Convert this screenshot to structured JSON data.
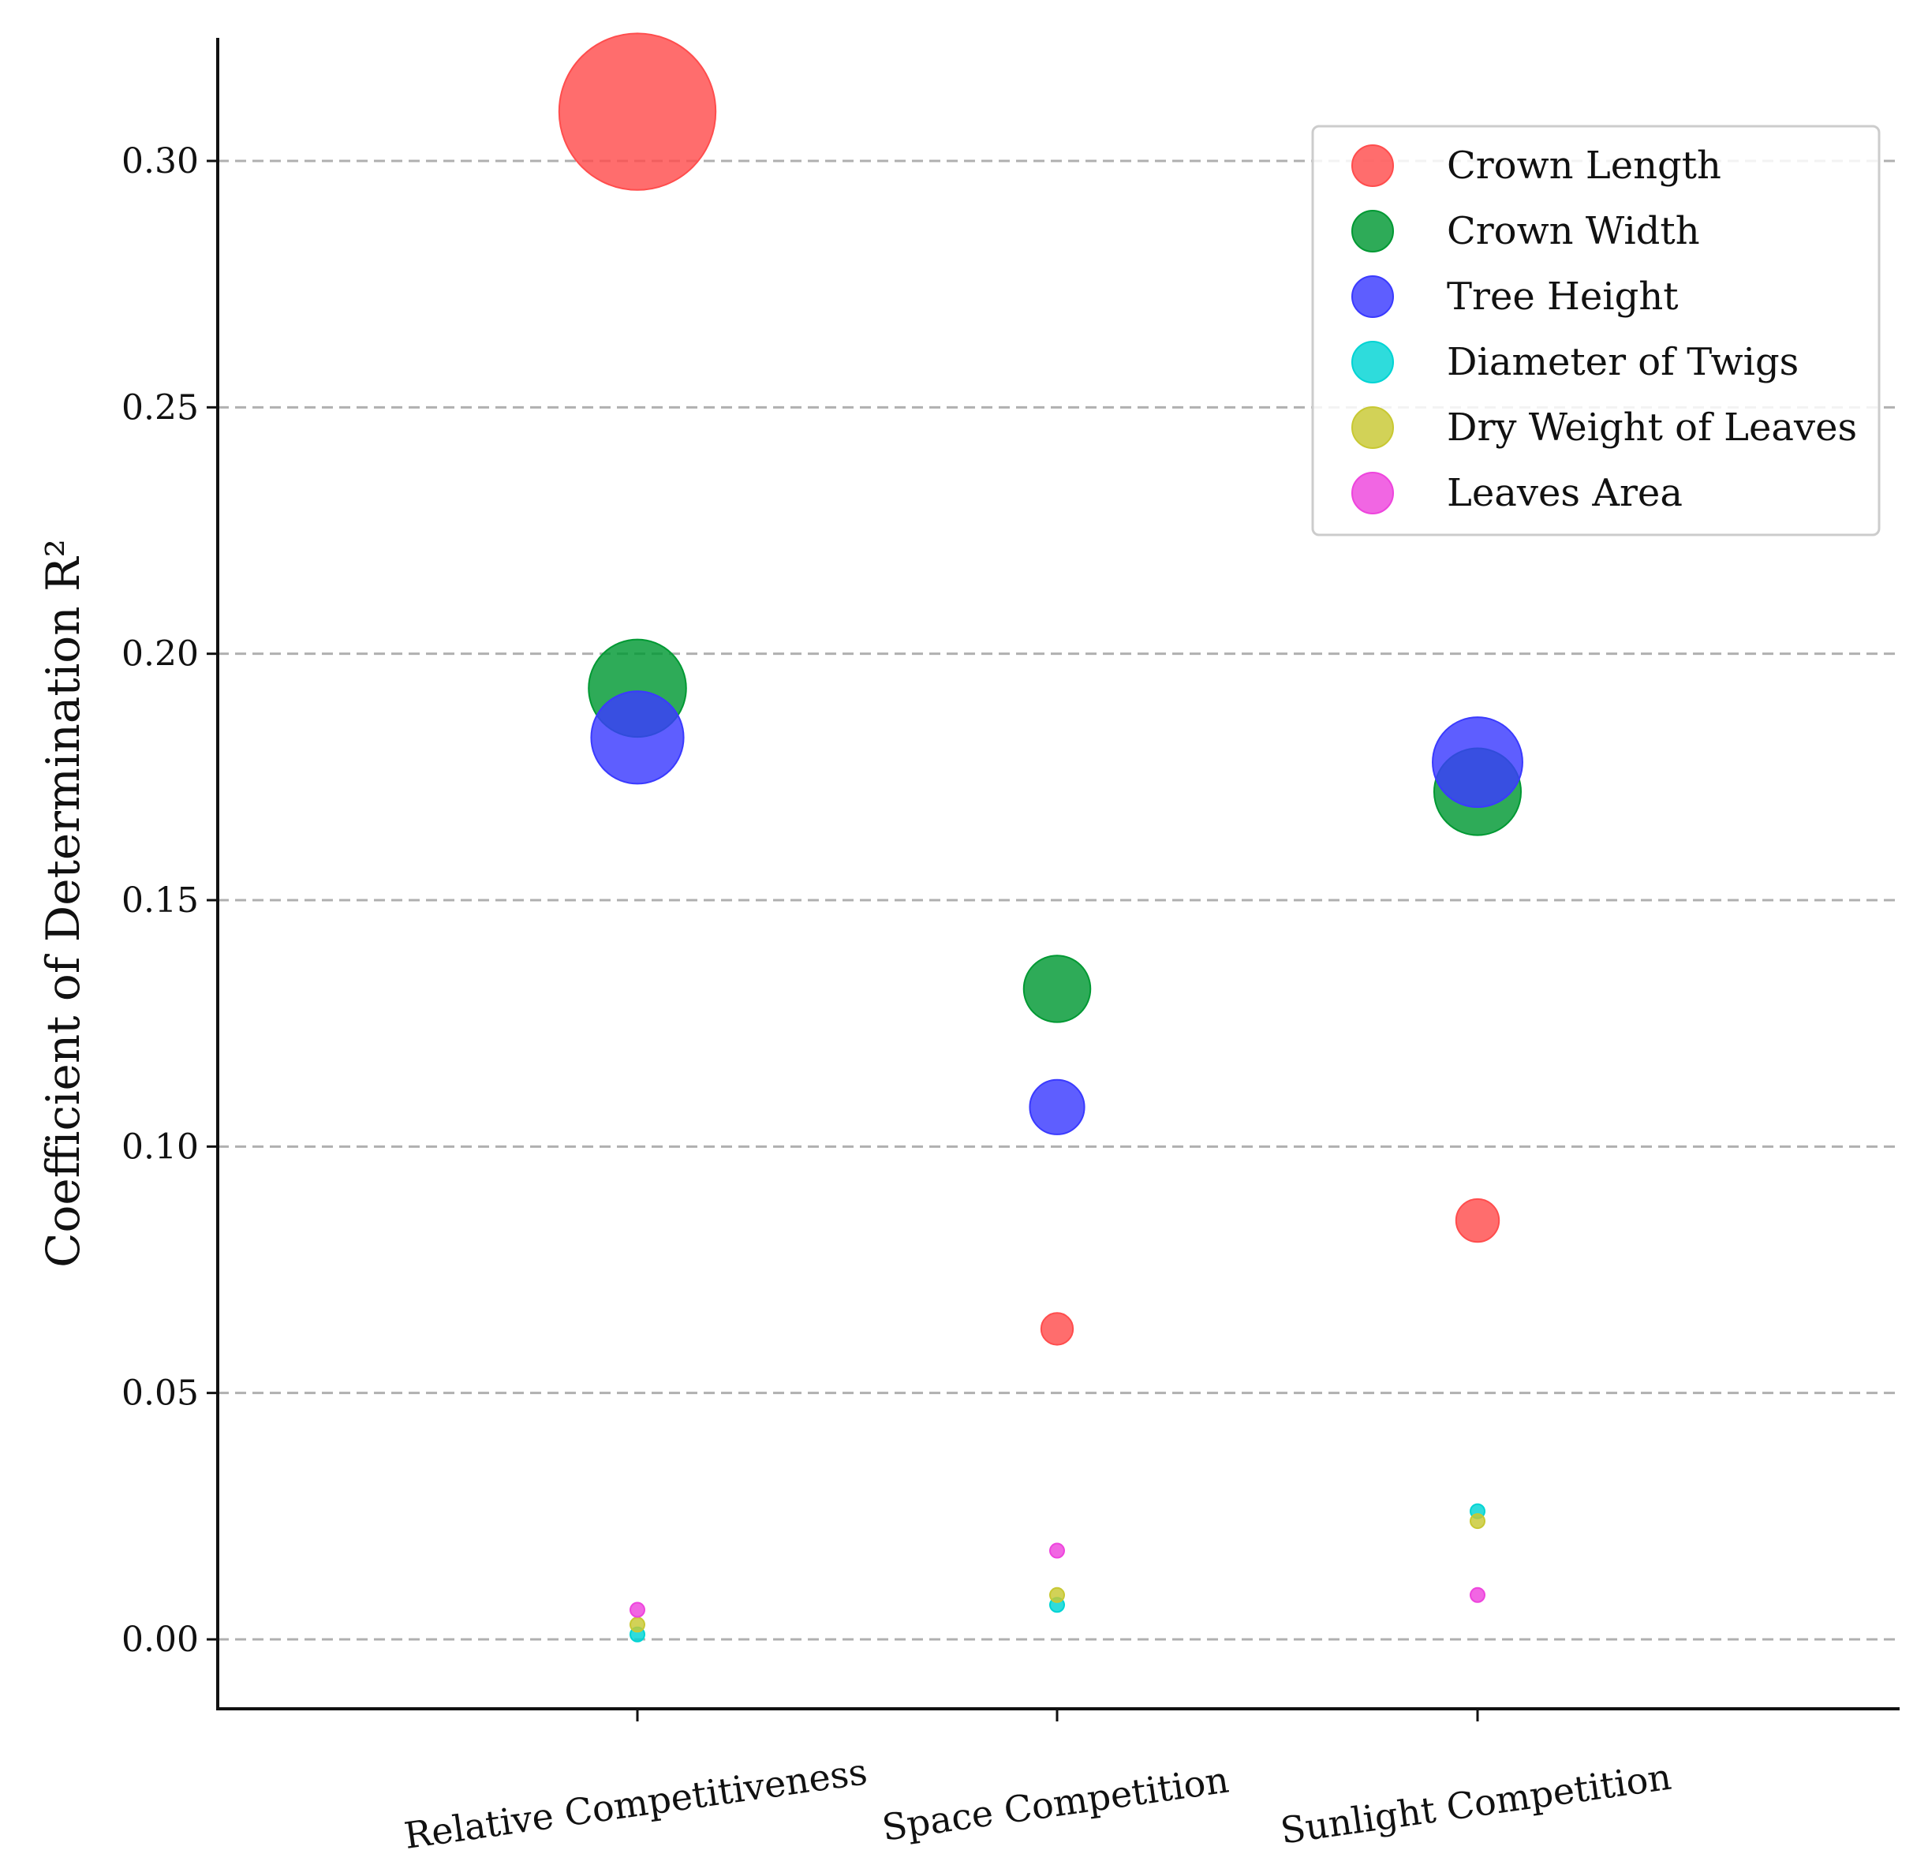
{
  "chart_data": {
    "type": "scatter",
    "title": "",
    "xlabel": "",
    "ylabel": "Coefficient  of  Determination  R²",
    "categories": [
      "Relative Competitiveness",
      "Space Competition",
      "Sunlight Competition"
    ],
    "ylim": [
      -0.014,
      0.325
    ],
    "yticks": [
      "0.00",
      "0.05",
      "0.10",
      "0.15",
      "0.20",
      "0.25",
      "0.30"
    ],
    "ytick_values": [
      0.0,
      0.05,
      0.1,
      0.15,
      0.2,
      0.25,
      0.3
    ],
    "grid": true,
    "marker_size": "proportional to R²",
    "legend_position": "top-right",
    "series": [
      {
        "name": "Crown Length",
        "color": "#ff4d4d",
        "values": [
          0.31,
          0.063,
          0.085
        ]
      },
      {
        "name": "Crown Width",
        "color": "#009933",
        "values": [
          0.193,
          0.132,
          0.172
        ]
      },
      {
        "name": "Tree Height",
        "color": "#3a3aff",
        "values": [
          0.183,
          0.108,
          0.178
        ]
      },
      {
        "name": "Diameter of Twigs",
        "color": "#00d4d4",
        "values": [
          0.001,
          0.007,
          0.026
        ]
      },
      {
        "name": "Dry Weight of Leaves",
        "color": "#c8c832",
        "values": [
          0.003,
          0.009,
          0.024
        ]
      },
      {
        "name": "Leaves Area",
        "color": "#ee44dd",
        "values": [
          0.006,
          0.018,
          0.009
        ]
      }
    ]
  }
}
